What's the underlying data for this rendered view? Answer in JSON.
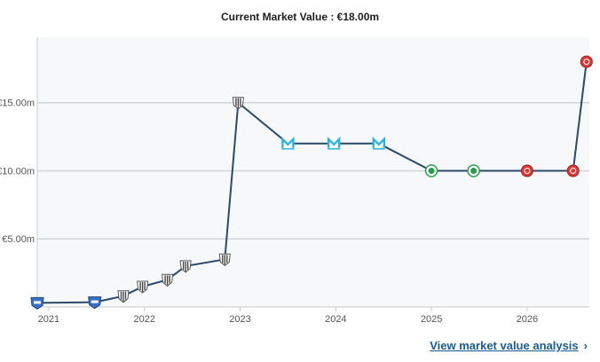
{
  "header": {
    "title": "Current Market Value : €18.00m"
  },
  "link": {
    "label": "View market value analysis",
    "chevron": "›"
  },
  "colors": {
    "line": "#2b4a6b",
    "plot_bg": "#f7f8f9",
    "grid": "#cfd4d9",
    "club_brighton": "#3a6fc4",
    "club_bw_stripes": "#6b6b6b",
    "club_marseille": "#2bb3e3",
    "club_green": "#2c9a4e",
    "club_red": "#d93a3a"
  },
  "chart_data": {
    "type": "line",
    "title": "Current Market Value : €18.00m",
    "xlabel": "",
    "ylabel": "",
    "x_ticks": [
      2021,
      2022,
      2023,
      2024,
      2025,
      2026
    ],
    "y_ticks": [
      {
        "value": 5,
        "label": "€5.00m"
      },
      {
        "value": 10,
        "label": "€10.00m"
      },
      {
        "value": 15,
        "label": "€15.00m"
      }
    ],
    "xlim": [
      2020.88,
      2026.65
    ],
    "ylim": [
      0,
      19.8
    ],
    "grid": true,
    "series": [
      {
        "points": [
          {
            "x": 2020.88,
            "y": 0.3,
            "club": "club_brighton"
          },
          {
            "x": 2021.48,
            "y": 0.35,
            "club": "club_brighton"
          },
          {
            "x": 2021.78,
            "y": 0.8,
            "club": "club_bw_stripes"
          },
          {
            "x": 2021.98,
            "y": 1.5,
            "club": "club_bw_stripes"
          },
          {
            "x": 2022.24,
            "y": 2.0,
            "club": "club_bw_stripes"
          },
          {
            "x": 2022.43,
            "y": 3.0,
            "club": "club_bw_stripes"
          },
          {
            "x": 2022.84,
            "y": 3.5,
            "club": "club_bw_stripes"
          },
          {
            "x": 2022.98,
            "y": 15.0,
            "club": "club_bw_stripes"
          },
          {
            "x": 2023.5,
            "y": 12.0,
            "club": "club_marseille"
          },
          {
            "x": 2023.98,
            "y": 12.0,
            "club": "club_marseille"
          },
          {
            "x": 2024.45,
            "y": 12.0,
            "club": "club_marseille"
          },
          {
            "x": 2025.0,
            "y": 10.0,
            "club": "club_green"
          },
          {
            "x": 2025.44,
            "y": 10.0,
            "club": "club_green"
          },
          {
            "x": 2026.0,
            "y": 10.0,
            "club": "club_red"
          },
          {
            "x": 2026.48,
            "y": 10.0,
            "club": "club_red"
          },
          {
            "x": 2026.62,
            "y": 18.0,
            "club": "club_red"
          }
        ]
      }
    ]
  }
}
